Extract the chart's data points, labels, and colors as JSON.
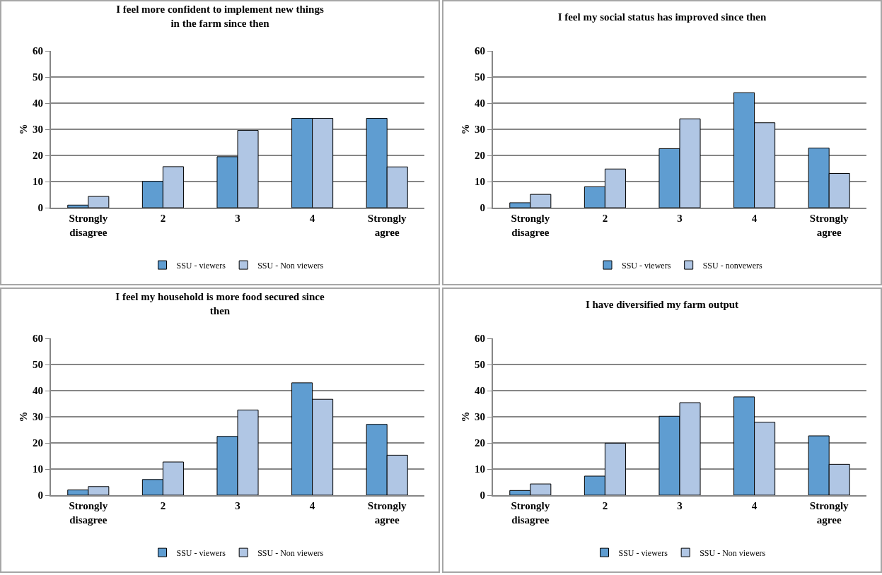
{
  "chart_data": [
    {
      "type": "bar",
      "title": "I feel more confident to implement new things in the farm since then",
      "ylabel": "%",
      "categories": [
        "Strongly disagree",
        "2",
        "3",
        "4",
        "Strongly agree"
      ],
      "series": [
        {
          "name": "SSU - viewers",
          "color": "#5f9dd1",
          "values": [
            1.0,
            10.1,
            19.5,
            34.2,
            34.2
          ]
        },
        {
          "name": "SSU - Non viewers",
          "color": "#b0c6e4",
          "values": [
            4.3,
            15.7,
            29.6,
            34.2,
            15.6
          ]
        }
      ],
      "ylim": [
        0,
        60
      ],
      "yticks": [
        0,
        10,
        20,
        30,
        40,
        50,
        60
      ],
      "grid": "y",
      "legend": "bottom"
    },
    {
      "type": "bar",
      "title": "I feel my social status has improved since then",
      "ylabel": "%",
      "categories": [
        "Strongly disagree",
        "2",
        "3",
        "4",
        "Strongly agree"
      ],
      "series": [
        {
          "name": "SSU - viewers",
          "color": "#5f9dd1",
          "values": [
            1.9,
            8.0,
            22.6,
            44.0,
            22.8
          ]
        },
        {
          "name": "SSU - nonvewers",
          "color": "#b0c6e4",
          "values": [
            5.1,
            14.8,
            34.0,
            32.5,
            13.1
          ]
        }
      ],
      "ylim": [
        0,
        60
      ],
      "yticks": [
        0,
        10,
        20,
        30,
        40,
        50,
        60
      ],
      "grid": "y",
      "legend": "bottom"
    },
    {
      "type": "bar",
      "title": "I feel my household is more food secured since then",
      "ylabel": "%",
      "categories": [
        "Strongly disagree",
        "2",
        "3",
        "4",
        "Strongly agree"
      ],
      "series": [
        {
          "name": "SSU - viewers",
          "color": "#5f9dd1",
          "values": [
            2.0,
            6.0,
            22.5,
            43.0,
            27.1
          ]
        },
        {
          "name": "SSU - Non viewers",
          "color": "#b0c6e4",
          "values": [
            3.3,
            12.7,
            32.6,
            36.7,
            15.3
          ]
        }
      ],
      "ylim": [
        0,
        60
      ],
      "yticks": [
        0,
        10,
        20,
        30,
        40,
        50,
        60
      ],
      "grid": "y",
      "legend": "bottom"
    },
    {
      "type": "bar",
      "title": "I have diversified my farm output",
      "ylabel": "%",
      "categories": [
        "Strongly disagree",
        "2",
        "3",
        "4",
        "Strongly agree"
      ],
      "series": [
        {
          "name": "SSU - viewers",
          "color": "#5f9dd1",
          "values": [
            1.8,
            7.3,
            30.2,
            37.6,
            22.7
          ]
        },
        {
          "name": "SSU - Non viewers",
          "color": "#b0c6e4",
          "values": [
            4.3,
            19.9,
            35.4,
            27.9,
            11.8
          ]
        }
      ],
      "ylim": [
        0,
        60
      ],
      "yticks": [
        0,
        10,
        20,
        30,
        40,
        50,
        60
      ],
      "grid": "y",
      "legend": "bottom"
    }
  ]
}
